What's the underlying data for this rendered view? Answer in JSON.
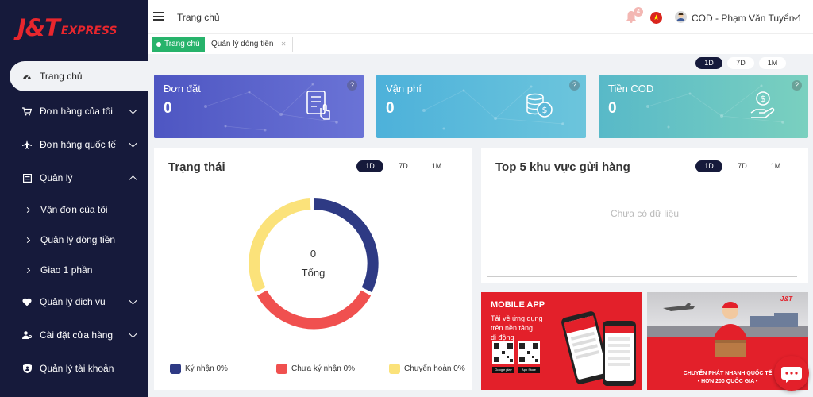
{
  "brand": {
    "logo_main": "J&T",
    "logo_sub": "EXPRESS"
  },
  "sidebar": {
    "items": [
      {
        "label": "Trang chủ",
        "icon": "dashboard-icon"
      },
      {
        "label": "Đơn hàng của tôi",
        "icon": "cart-icon"
      },
      {
        "label": "Đơn hàng quốc tế",
        "icon": "plane-icon"
      },
      {
        "label": "Quản lý",
        "icon": "list-icon"
      },
      {
        "label": "Vận đơn của tôi"
      },
      {
        "label": "Quản lý dòng tiền"
      },
      {
        "label": "Giao 1 phần"
      },
      {
        "label": "Quản lý dịch vụ",
        "icon": "heart-icon"
      },
      {
        "label": "Cài đặt cửa hàng",
        "icon": "store-settings-icon"
      },
      {
        "label": "Quản lý tài khoản",
        "icon": "shield-icon"
      }
    ]
  },
  "header": {
    "breadcrumb": "Trang chủ",
    "notification_count": "4",
    "user_name": "COD - Phạm Văn Tuyển 1",
    "flag_icon": "vietnam-flag-icon"
  },
  "tabs": [
    {
      "label": "Trang chủ"
    },
    {
      "label": "Quản lý dòng tiền"
    }
  ],
  "periods": [
    "1D",
    "7D",
    "1M"
  ],
  "kpis": [
    {
      "title": "Đơn đặt",
      "value": "0",
      "icon": "order-form-icon"
    },
    {
      "title": "Vận phí",
      "value": "0",
      "icon": "coins-icon"
    },
    {
      "title": "Tiền COD",
      "value": "0",
      "icon": "hand-coin-icon"
    }
  ],
  "status_panel": {
    "title": "Trạng thái",
    "total_value": "0",
    "total_label": "Tổng",
    "legend": [
      {
        "label": "Ký nhận 0%",
        "color": "#2e3a84"
      },
      {
        "label": "Chưa ký nhận 0%",
        "color": "#f0504f"
      },
      {
        "label": "Chuyển hoàn 0%",
        "color": "#fbe27a"
      }
    ]
  },
  "region_panel": {
    "title": "Top 5 khu vực gửi hàng",
    "empty_text": "Chưa có dữ liệu"
  },
  "banners": {
    "app": {
      "title": "MOBILE APP",
      "line1": "Tải về ứng dụng",
      "line2": "trên nền tảng",
      "line3": "di động",
      "store1": "Google play",
      "store2": "App Store"
    },
    "express": {
      "line1": "CHUYỂN PHÁT NHANH QUỐC TẾ",
      "line2": "• HƠN 200 QUỐC GIA •"
    }
  },
  "colors": {
    "sidebar_bg": "#161a3b",
    "accent_red": "#e3202a",
    "tab_green": "#27b36b",
    "kpi1": "#5b64c8",
    "kpi2": "#5cb8d8",
    "kpi3": "#6bc4c4"
  }
}
